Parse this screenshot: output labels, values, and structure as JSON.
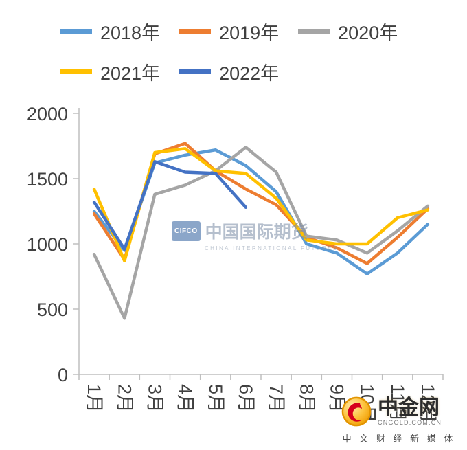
{
  "chart_data": {
    "type": "line",
    "title": "",
    "xlabel": "",
    "ylabel": "",
    "categories": [
      "1月",
      "2月",
      "3月",
      "4月",
      "5月",
      "6月",
      "7月",
      "8月",
      "9月",
      "10月",
      "11月",
      "12月"
    ],
    "ylim": [
      0,
      2000
    ],
    "yticks": [
      0,
      500,
      1000,
      1500,
      2000
    ],
    "grid": false,
    "legend_position": "top",
    "series": [
      {
        "name": "2018年",
        "color": "#5B9BD5",
        "values": [
          1250,
          950,
          1620,
          1680,
          1720,
          1600,
          1400,
          1000,
          930,
          770,
          930,
          1150
        ]
      },
      {
        "name": "2019年",
        "color": "#ED7D31",
        "values": [
          1230,
          880,
          1690,
          1770,
          1560,
          1420,
          1300,
          1050,
          970,
          850,
          1050,
          1270
        ]
      },
      {
        "name": "2020年",
        "color": "#A5A5A5",
        "values": [
          920,
          430,
          1380,
          1450,
          1560,
          1740,
          1550,
          1060,
          1030,
          930,
          1100,
          1290
        ]
      },
      {
        "name": "2021年",
        "color": "#FFC000",
        "values": [
          1420,
          870,
          1700,
          1730,
          1560,
          1540,
          1350,
          1030,
          1000,
          1000,
          1200,
          1260
        ]
      },
      {
        "name": "2022年",
        "color": "#4472C4",
        "values": [
          1320,
          960,
          1630,
          1550,
          1540,
          1280,
          null,
          null,
          null,
          null,
          null,
          null
        ]
      }
    ]
  },
  "watermark": {
    "badge": "CIFCO",
    "name_cn": "中国国际期货",
    "name_en": "CHINA INTERNATIONAL FUTURES"
  },
  "site_logo": {
    "name_cn": "中金网",
    "domain": "CNGOLD.COM.CN",
    "tagline": "中 文 财 经 新 媒 体"
  }
}
